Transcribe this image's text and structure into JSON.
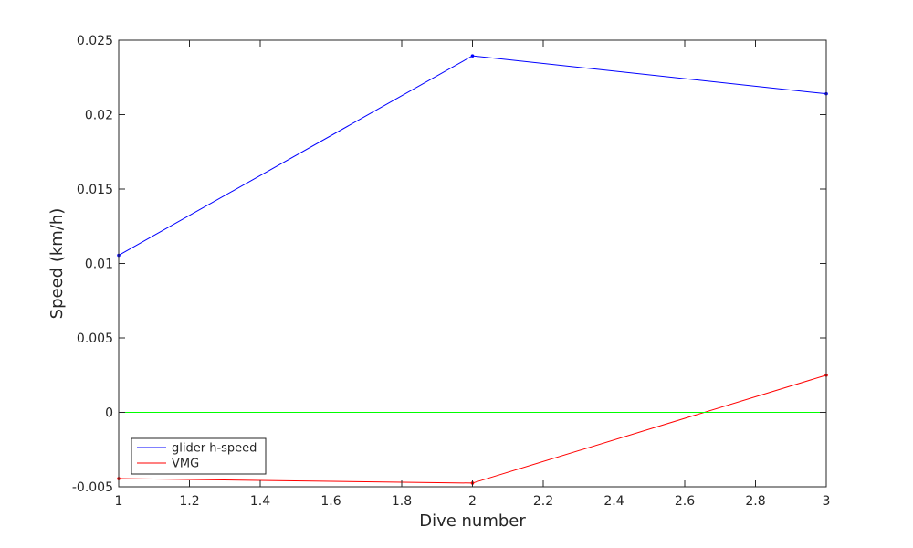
{
  "chart_data": {
    "type": "line",
    "title": "",
    "xlabel": "Dive number",
    "ylabel": "Speed (km/h)",
    "xlim": [
      1,
      3
    ],
    "ylim": [
      -0.005,
      0.025
    ],
    "xticks": [
      1,
      1.2,
      1.4,
      1.6,
      1.8,
      2,
      2.2,
      2.4,
      2.6,
      2.8,
      3
    ],
    "xtick_labels": [
      "1",
      "1.2",
      "1.4",
      "1.6",
      "1.8",
      "2",
      "2.2",
      "2.4",
      "2.6",
      "2.8",
      "3"
    ],
    "yticks": [
      -0.005,
      0,
      0.005,
      0.01,
      0.015,
      0.02,
      0.025
    ],
    "ytick_labels": [
      "-0.005",
      "0",
      "0.005",
      "0.01",
      "0.015",
      "0.02",
      "0.025"
    ],
    "grid": false,
    "legend_position": "bottom-left",
    "series": [
      {
        "name": "glider h-speed",
        "color": "#0000ff",
        "x": [
          1,
          2,
          3
        ],
        "y": [
          0.01055,
          0.02395,
          0.0214
        ],
        "in_legend": true
      },
      {
        "name": "VMG",
        "color": "#ff0000",
        "x": [
          1,
          2,
          3
        ],
        "y": [
          -0.00445,
          -0.00475,
          0.0025
        ],
        "in_legend": true
      },
      {
        "color": "#00ff00",
        "x": [
          1,
          3
        ],
        "y": [
          0,
          0
        ],
        "in_legend": false,
        "markers": false
      }
    ]
  }
}
